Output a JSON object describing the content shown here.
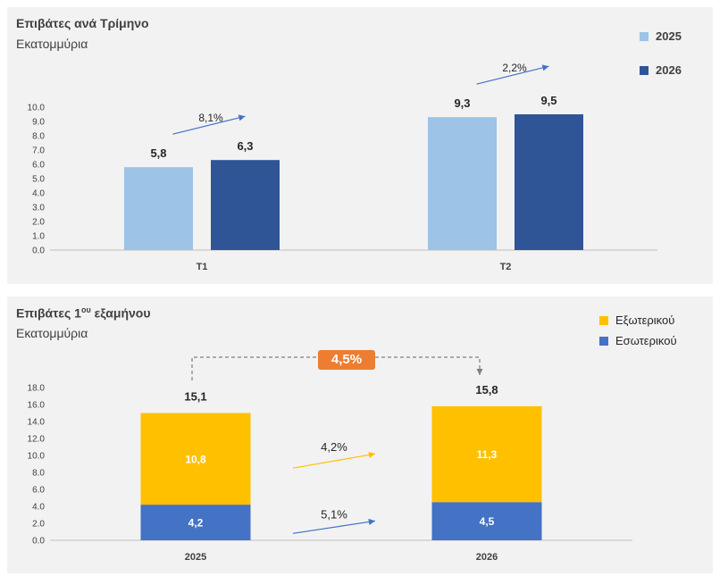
{
  "chart_data": [
    {
      "type": "bar",
      "title": "Επιβάτες ανά Τρίμηνο",
      "subtitle": "Εκατομμύρια",
      "categories": [
        "Τ1",
        "Τ2"
      ],
      "series": [
        {
          "name": "2025",
          "values": [
            5.8,
            9.3
          ],
          "labels": [
            "5,8",
            "9,3"
          ],
          "color": "#9dc3e6"
        },
        {
          "name": "2026",
          "values": [
            6.3,
            9.5
          ],
          "labels": [
            "6,3",
            "9,5"
          ],
          "color": "#2f5597"
        }
      ],
      "growth": [
        "8,1%",
        "2,2%"
      ],
      "ylim": [
        0,
        10
      ],
      "yticks": [
        "0.0",
        "1.0",
        "2.0",
        "3.0",
        "4.0",
        "5.0",
        "6.0",
        "7.0",
        "8.0",
        "9.0",
        "10.0"
      ],
      "legend_position": "top-right"
    },
    {
      "type": "bar",
      "stacked": true,
      "title": "Επιβάτες 1",
      "title_sup": "ου",
      "title_end": " εξαμήνου",
      "subtitle": "Εκατομμύρια",
      "categories": [
        "2025",
        "2026"
      ],
      "series": [
        {
          "name": "Εσωτερικού",
          "values": [
            4.2,
            4.5
          ],
          "labels": [
            "4,2",
            "4,5"
          ],
          "color": "#4472c4"
        },
        {
          "name": "Εξωτερικού",
          "values": [
            10.8,
            11.3
          ],
          "labels": [
            "10,8",
            "11,3"
          ],
          "color": "#ffc000"
        }
      ],
      "totals": [
        "15,1",
        "15,8"
      ],
      "total_growth": "4,5%",
      "segment_growth": {
        "Εξωτερικού": "4,2%",
        "Εσωτερικού": "5,1%"
      },
      "ylim": [
        0,
        18
      ],
      "yticks": [
        "0.0",
        "2.0",
        "4.0",
        "6.0",
        "8.0",
        "10.0",
        "12.0",
        "14.0",
        "16.0",
        "18.0"
      ],
      "legend_position": "top-right"
    }
  ]
}
